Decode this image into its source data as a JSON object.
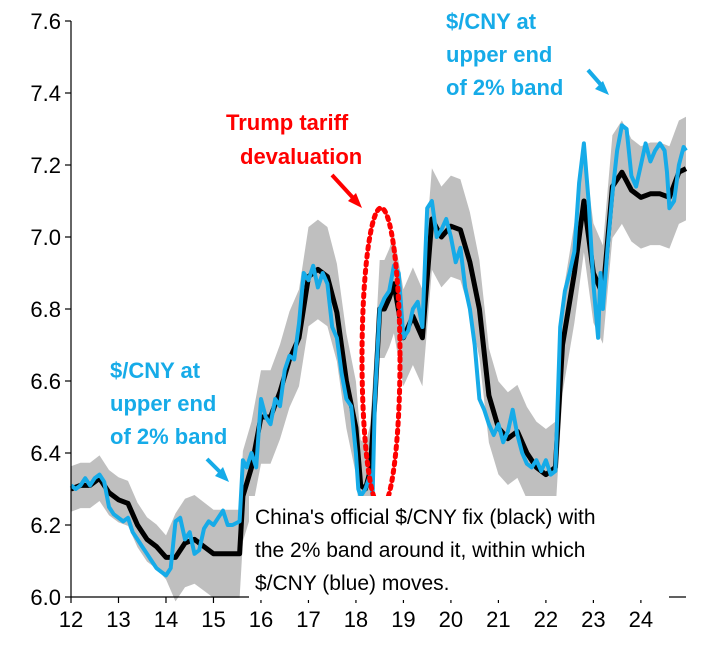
{
  "chart_data": {
    "type": "line",
    "title": "",
    "xlabel": "",
    "ylabel": "",
    "xlim": [
      12,
      24.95
    ],
    "ylim": [
      6.0,
      7.6
    ],
    "x_ticks": [
      "12",
      "13",
      "14",
      "15",
      "16",
      "17",
      "18",
      "19",
      "20",
      "21",
      "22",
      "23",
      "24"
    ],
    "y_ticks": [
      "6.0",
      "6.2",
      "6.4",
      "6.6",
      "6.8",
      "7.0",
      "7.2",
      "7.4",
      "7.6"
    ],
    "series": [
      {
        "name": "China's official $/CNY fix",
        "role": "fix",
        "color": "#000000",
        "points": [
          [
            12.0,
            6.3
          ],
          [
            12.2,
            6.31
          ],
          [
            12.4,
            6.31
          ],
          [
            12.6,
            6.33
          ],
          [
            12.8,
            6.29
          ],
          [
            13.0,
            6.27
          ],
          [
            13.2,
            6.26
          ],
          [
            13.4,
            6.2
          ],
          [
            13.6,
            6.16
          ],
          [
            13.8,
            6.14
          ],
          [
            14.0,
            6.11
          ],
          [
            14.2,
            6.11
          ],
          [
            14.4,
            6.15
          ],
          [
            14.6,
            6.16
          ],
          [
            14.8,
            6.14
          ],
          [
            15.0,
            6.12
          ],
          [
            15.2,
            6.12
          ],
          [
            15.4,
            6.12
          ],
          [
            15.55,
            6.12
          ],
          [
            15.62,
            6.28
          ],
          [
            15.8,
            6.36
          ],
          [
            16.0,
            6.5
          ],
          [
            16.2,
            6.5
          ],
          [
            16.4,
            6.57
          ],
          [
            16.6,
            6.66
          ],
          [
            16.8,
            6.72
          ],
          [
            17.0,
            6.89
          ],
          [
            17.2,
            6.91
          ],
          [
            17.4,
            6.89
          ],
          [
            17.6,
            6.79
          ],
          [
            17.8,
            6.6
          ],
          [
            18.0,
            6.47
          ],
          [
            18.1,
            6.31
          ],
          [
            18.2,
            6.3
          ],
          [
            18.3,
            6.35
          ],
          [
            18.4,
            6.55
          ],
          [
            18.5,
            6.8
          ],
          [
            18.6,
            6.8
          ],
          [
            18.7,
            6.83
          ],
          [
            18.8,
            6.87
          ],
          [
            19.0,
            6.72
          ],
          [
            19.2,
            6.78
          ],
          [
            19.4,
            6.72
          ],
          [
            19.6,
            7.05
          ],
          [
            19.8,
            7.0
          ],
          [
            20.0,
            7.03
          ],
          [
            20.2,
            7.02
          ],
          [
            20.4,
            6.93
          ],
          [
            20.6,
            6.8
          ],
          [
            20.8,
            6.56
          ],
          [
            21.0,
            6.47
          ],
          [
            21.2,
            6.44
          ],
          [
            21.4,
            6.46
          ],
          [
            21.6,
            6.4
          ],
          [
            21.8,
            6.36
          ],
          [
            22.0,
            6.34
          ],
          [
            22.2,
            6.36
          ],
          [
            22.35,
            6.7
          ],
          [
            22.6,
            6.9
          ],
          [
            22.8,
            7.1
          ],
          [
            23.0,
            6.9
          ],
          [
            23.2,
            6.84
          ],
          [
            23.4,
            7.14
          ],
          [
            23.6,
            7.18
          ],
          [
            23.8,
            7.13
          ],
          [
            24.0,
            7.11
          ],
          [
            24.2,
            7.12
          ],
          [
            24.4,
            7.12
          ],
          [
            24.6,
            7.11
          ],
          [
            24.8,
            7.18
          ],
          [
            24.95,
            7.19
          ]
        ]
      },
      {
        "name": "$/CNY",
        "role": "spot",
        "color": "#16abe8",
        "points": [
          [
            12.0,
            6.31
          ],
          [
            12.1,
            6.3
          ],
          [
            12.2,
            6.31
          ],
          [
            12.3,
            6.33
          ],
          [
            12.4,
            6.31
          ],
          [
            12.5,
            6.33
          ],
          [
            12.6,
            6.34
          ],
          [
            12.7,
            6.32
          ],
          [
            12.8,
            6.25
          ],
          [
            12.9,
            6.23
          ],
          [
            13.0,
            6.22
          ],
          [
            13.1,
            6.21
          ],
          [
            13.2,
            6.22
          ],
          [
            13.3,
            6.18
          ],
          [
            13.4,
            6.16
          ],
          [
            13.5,
            6.14
          ],
          [
            13.6,
            6.12
          ],
          [
            13.7,
            6.1
          ],
          [
            13.8,
            6.08
          ],
          [
            13.9,
            6.07
          ],
          [
            14.0,
            6.06
          ],
          [
            14.1,
            6.08
          ],
          [
            14.2,
            6.21
          ],
          [
            14.3,
            6.22
          ],
          [
            14.4,
            6.16
          ],
          [
            14.5,
            6.18
          ],
          [
            14.6,
            6.12
          ],
          [
            14.7,
            6.13
          ],
          [
            14.8,
            6.19
          ],
          [
            14.9,
            6.21
          ],
          [
            15.0,
            6.2
          ],
          [
            15.1,
            6.22
          ],
          [
            15.2,
            6.24
          ],
          [
            15.3,
            6.2
          ],
          [
            15.4,
            6.2
          ],
          [
            15.55,
            6.21
          ],
          [
            15.62,
            6.38
          ],
          [
            15.7,
            6.36
          ],
          [
            15.8,
            6.4
          ],
          [
            15.9,
            6.36
          ],
          [
            16.0,
            6.55
          ],
          [
            16.1,
            6.5
          ],
          [
            16.2,
            6.48
          ],
          [
            16.3,
            6.55
          ],
          [
            16.4,
            6.53
          ],
          [
            16.5,
            6.63
          ],
          [
            16.6,
            6.67
          ],
          [
            16.7,
            6.66
          ],
          [
            16.8,
            6.76
          ],
          [
            16.9,
            6.9
          ],
          [
            17.0,
            6.88
          ],
          [
            17.1,
            6.92
          ],
          [
            17.2,
            6.86
          ],
          [
            17.3,
            6.9
          ],
          [
            17.4,
            6.87
          ],
          [
            17.5,
            6.75
          ],
          [
            17.6,
            6.72
          ],
          [
            17.7,
            6.62
          ],
          [
            17.8,
            6.55
          ],
          [
            17.9,
            6.53
          ],
          [
            18.0,
            6.4
          ],
          [
            18.05,
            6.3
          ],
          [
            18.1,
            6.28
          ],
          [
            18.2,
            6.3
          ],
          [
            18.3,
            6.34
          ],
          [
            18.35,
            6.28
          ],
          [
            18.4,
            6.55
          ],
          [
            18.5,
            6.8
          ],
          [
            18.6,
            6.83
          ],
          [
            18.7,
            6.85
          ],
          [
            18.8,
            6.92
          ],
          [
            18.9,
            6.9
          ],
          [
            19.0,
            6.72
          ],
          [
            19.1,
            6.74
          ],
          [
            19.2,
            6.8
          ],
          [
            19.3,
            6.82
          ],
          [
            19.4,
            6.75
          ],
          [
            19.5,
            7.08
          ],
          [
            19.6,
            7.1
          ],
          [
            19.7,
            7.0
          ],
          [
            19.8,
            7.02
          ],
          [
            19.9,
            7.05
          ],
          [
            20.0,
            7.0
          ],
          [
            20.1,
            6.93
          ],
          [
            20.2,
            6.97
          ],
          [
            20.3,
            6.86
          ],
          [
            20.4,
            6.8
          ],
          [
            20.5,
            6.7
          ],
          [
            20.6,
            6.55
          ],
          [
            20.7,
            6.52
          ],
          [
            20.8,
            6.48
          ],
          [
            20.9,
            6.45
          ],
          [
            21.0,
            6.48
          ],
          [
            21.1,
            6.43
          ],
          [
            21.2,
            6.46
          ],
          [
            21.3,
            6.52
          ],
          [
            21.4,
            6.45
          ],
          [
            21.5,
            6.4
          ],
          [
            21.6,
            6.37
          ],
          [
            21.7,
            6.36
          ],
          [
            21.8,
            6.38
          ],
          [
            21.9,
            6.35
          ],
          [
            22.0,
            6.38
          ],
          [
            22.1,
            6.34
          ],
          [
            22.2,
            6.35
          ],
          [
            22.3,
            6.75
          ],
          [
            22.4,
            6.85
          ],
          [
            22.5,
            6.9
          ],
          [
            22.6,
            6.96
          ],
          [
            22.7,
            7.15
          ],
          [
            22.8,
            7.26
          ],
          [
            22.9,
            7.1
          ],
          [
            23.0,
            6.87
          ],
          [
            23.1,
            6.72
          ],
          [
            23.15,
            6.9
          ],
          [
            23.2,
            6.8
          ],
          [
            23.3,
            6.97
          ],
          [
            23.4,
            7.12
          ],
          [
            23.5,
            7.24
          ],
          [
            23.6,
            7.31
          ],
          [
            23.7,
            7.3
          ],
          [
            23.8,
            7.17
          ],
          [
            23.9,
            7.14
          ],
          [
            24.0,
            7.2
          ],
          [
            24.1,
            7.26
          ],
          [
            24.2,
            7.21
          ],
          [
            24.3,
            7.24
          ],
          [
            24.4,
            7.26
          ],
          [
            24.5,
            7.24
          ],
          [
            24.55,
            7.18
          ],
          [
            24.6,
            7.08
          ],
          [
            24.7,
            7.1
          ],
          [
            24.75,
            7.15
          ],
          [
            24.8,
            7.2
          ],
          [
            24.9,
            7.25
          ],
          [
            24.95,
            7.24
          ]
        ]
      }
    ],
    "band": {
      "name": "2% band",
      "color": "#bfbfbf",
      "width_pct": 2,
      "width_pct_before_2014": 1
    },
    "annotations": [
      {
        "id": "upper-left",
        "color": "#16abe8",
        "lines": [
          "$/CNY at",
          "upper end",
          "of 2% band"
        ]
      },
      {
        "id": "upper-right",
        "color": "#16abe8",
        "lines": [
          "$/CNY at",
          "upper end",
          "of 2% band"
        ]
      },
      {
        "id": "trump",
        "color": "#ff0000",
        "lines": [
          "Trump tariff",
          "devaluation"
        ]
      },
      {
        "id": "note",
        "color": "#000000",
        "lines": [
          "China's official $/CNY fix (black) with",
          "the 2% band around it, within which",
          "$/CNY (blue) moves."
        ]
      }
    ]
  }
}
